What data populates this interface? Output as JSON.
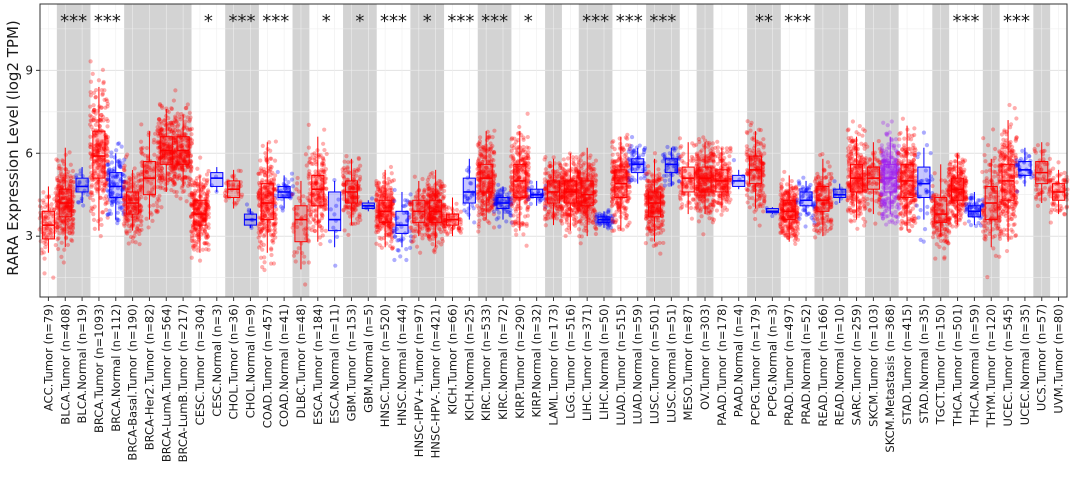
{
  "chart_data": {
    "type": "box",
    "title": "",
    "ylabel": "RARA Expression Level (log2 TPM)",
    "xlabel": "",
    "ylim": [
      0.8,
      11.4
    ],
    "yticks": [
      3,
      6,
      9
    ],
    "grid": true,
    "legend": "none",
    "colors": {
      "Tumor": "#ff0000",
      "Normal": "#0000ff",
      "Metastasis": "#a020f0"
    },
    "categories": [
      {
        "label": "ACC.Tumor (n=79)",
        "type": "Tumor",
        "group": 0,
        "median": 3.4,
        "q1": 2.9,
        "q3": 3.9,
        "wlo": 2.4,
        "whi": 4.8,
        "n": 79,
        "sig": ""
      },
      {
        "label": "BLCA.Tumor (n=408)",
        "type": "Tumor",
        "group": 1,
        "median": 4.2,
        "q1": 3.7,
        "q3": 4.7,
        "wlo": 2.6,
        "whi": 6.2,
        "n": 408,
        "sig": "***"
      },
      {
        "label": "BLCA.Normal (n=19)",
        "type": "Normal",
        "group": 1,
        "median": 4.8,
        "q1": 4.6,
        "q3": 5.1,
        "wlo": 4.2,
        "whi": 5.5,
        "n": 19,
        "sig": ""
      },
      {
        "label": "BRCA.Tumor (n=1093)",
        "type": "Tumor",
        "group": 2,
        "median": 5.9,
        "q1": 5.1,
        "q3": 6.8,
        "wlo": 3.2,
        "whi": 8.4,
        "n": 1093,
        "sig": "***"
      },
      {
        "label": "BRCA.Normal (n=112)",
        "type": "Normal",
        "group": 2,
        "median": 4.8,
        "q1": 4.4,
        "q3": 5.3,
        "wlo": 3.6,
        "whi": 6.0,
        "n": 112,
        "sig": ""
      },
      {
        "label": "BRCA-Basal.Tumor (n=190)",
        "type": "Tumor",
        "group": 3,
        "median": 4.2,
        "q1": 3.8,
        "q3": 4.6,
        "wlo": 3.2,
        "whi": 5.4,
        "n": 190,
        "sig": ""
      },
      {
        "label": "BRCA-Her2.Tumor (n=82)",
        "type": "Tumor",
        "group": 3,
        "median": 5.1,
        "q1": 4.5,
        "q3": 5.7,
        "wlo": 3.6,
        "whi": 6.8,
        "n": 82,
        "sig": ""
      },
      {
        "label": "BRCA-LumA.Tumor (n=564)",
        "type": "Tumor",
        "group": 3,
        "median": 6.1,
        "q1": 5.6,
        "q3": 6.6,
        "wlo": 4.6,
        "whi": 7.6,
        "n": 564,
        "sig": ""
      },
      {
        "label": "BRCA-LumB.Tumor (n=217)",
        "type": "Tumor",
        "group": 3,
        "median": 6.1,
        "q1": 5.6,
        "q3": 6.6,
        "wlo": 4.8,
        "whi": 7.4,
        "n": 217,
        "sig": ""
      },
      {
        "label": "CESC.Tumor (n=304)",
        "type": "Tumor",
        "group": 4,
        "median": 3.8,
        "q1": 3.4,
        "q3": 4.3,
        "wlo": 2.4,
        "whi": 5.2,
        "n": 304,
        "sig": "*"
      },
      {
        "label": "CESC.Normal (n=3)",
        "type": "Normal",
        "group": 4,
        "median": 5.1,
        "q1": 4.8,
        "q3": 5.3,
        "wlo": 4.6,
        "whi": 5.5,
        "n": 3,
        "sig": ""
      },
      {
        "label": "CHOL.Tumor (n=36)",
        "type": "Tumor",
        "group": 5,
        "median": 4.7,
        "q1": 4.4,
        "q3": 5.0,
        "wlo": 4.0,
        "whi": 5.4,
        "n": 36,
        "sig": "***"
      },
      {
        "label": "CHOL.Normal (n=9)",
        "type": "Normal",
        "group": 5,
        "median": 3.6,
        "q1": 3.4,
        "q3": 3.8,
        "wlo": 3.3,
        "whi": 4.0,
        "n": 9,
        "sig": ""
      },
      {
        "label": "COAD.Tumor (n=457)",
        "type": "Tumor",
        "group": 6,
        "median": 4.2,
        "q1": 3.6,
        "q3": 4.9,
        "wlo": 2.4,
        "whi": 6.4,
        "n": 457,
        "sig": "***"
      },
      {
        "label": "COAD.Normal (n=41)",
        "type": "Normal",
        "group": 6,
        "median": 4.6,
        "q1": 4.4,
        "q3": 4.8,
        "wlo": 4.0,
        "whi": 5.2,
        "n": 41,
        "sig": ""
      },
      {
        "label": "DLBC.Tumor (n=48)",
        "type": "Tumor",
        "group": 7,
        "median": 3.6,
        "q1": 2.8,
        "q3": 4.1,
        "wlo": 1.8,
        "whi": 5.0,
        "n": 48,
        "sig": ""
      },
      {
        "label": "ESCA.Tumor (n=184)",
        "type": "Tumor",
        "group": 8,
        "median": 4.7,
        "q1": 4.1,
        "q3": 5.2,
        "wlo": 2.8,
        "whi": 6.6,
        "n": 184,
        "sig": "*"
      },
      {
        "label": "ESCA.Normal (n=11)",
        "type": "Normal",
        "group": 8,
        "median": 3.6,
        "q1": 3.2,
        "q3": 4.6,
        "wlo": 2.6,
        "whi": 5.0,
        "n": 11,
        "sig": ""
      },
      {
        "label": "GBM.Tumor (n=153)",
        "type": "Tumor",
        "group": 9,
        "median": 4.6,
        "q1": 4.2,
        "q3": 5.0,
        "wlo": 3.4,
        "whi": 5.8,
        "n": 153,
        "sig": "*"
      },
      {
        "label": "GBM.Normal (n=5)",
        "type": "Normal",
        "group": 9,
        "median": 4.1,
        "q1": 4.0,
        "q3": 4.2,
        "wlo": 3.9,
        "whi": 4.3,
        "n": 5,
        "sig": ""
      },
      {
        "label": "HNSC.Tumor (n=520)",
        "type": "Tumor",
        "group": 10,
        "median": 3.9,
        "q1": 3.5,
        "q3": 4.3,
        "wlo": 2.6,
        "whi": 5.4,
        "n": 520,
        "sig": "***"
      },
      {
        "label": "HNSC.Normal (n=44)",
        "type": "Normal",
        "group": 10,
        "median": 3.4,
        "q1": 3.1,
        "q3": 3.9,
        "wlo": 2.6,
        "whi": 4.6,
        "n": 44,
        "sig": ""
      },
      {
        "label": "HNSC-HPV+.Tumor (n=97)",
        "type": "Tumor",
        "group": 11,
        "median": 3.9,
        "q1": 3.5,
        "q3": 4.3,
        "wlo": 3.0,
        "whi": 5.0,
        "n": 97,
        "sig": "*"
      },
      {
        "label": "HNSC-HPV-.Tumor (n=421)",
        "type": "Tumor",
        "group": 11,
        "median": 3.9,
        "q1": 3.5,
        "q3": 4.3,
        "wlo": 2.6,
        "whi": 5.4,
        "n": 421,
        "sig": ""
      },
      {
        "label": "KICH.Tumor (n=66)",
        "type": "Tumor",
        "group": 12,
        "median": 3.6,
        "q1": 3.4,
        "q3": 3.8,
        "wlo": 3.0,
        "whi": 4.4,
        "n": 66,
        "sig": "***"
      },
      {
        "label": "KICH.Normal (n=25)",
        "type": "Normal",
        "group": 12,
        "median": 4.6,
        "q1": 4.2,
        "q3": 5.1,
        "wlo": 3.6,
        "whi": 5.8,
        "n": 25,
        "sig": ""
      },
      {
        "label": "KIRC.Tumor (n=533)",
        "type": "Tumor",
        "group": 13,
        "median": 5.1,
        "q1": 4.6,
        "q3": 5.6,
        "wlo": 3.6,
        "whi": 6.8,
        "n": 533,
        "sig": "***"
      },
      {
        "label": "KIRC.Normal (n=72)",
        "type": "Normal",
        "group": 13,
        "median": 4.2,
        "q1": 4.0,
        "q3": 4.4,
        "wlo": 3.6,
        "whi": 4.8,
        "n": 72,
        "sig": ""
      },
      {
        "label": "KIRP.Tumor (n=290)",
        "type": "Tumor",
        "group": 14,
        "median": 5.0,
        "q1": 4.4,
        "q3": 5.6,
        "wlo": 3.2,
        "whi": 6.8,
        "n": 290,
        "sig": "*"
      },
      {
        "label": "KIRP.Normal (n=32)",
        "type": "Normal",
        "group": 14,
        "median": 4.5,
        "q1": 4.4,
        "q3": 4.7,
        "wlo": 4.1,
        "whi": 5.0,
        "n": 32,
        "sig": ""
      },
      {
        "label": "LAML.Tumor (n=173)",
        "type": "Tumor",
        "group": 15,
        "median": 4.6,
        "q1": 4.2,
        "q3": 5.0,
        "wlo": 3.4,
        "whi": 5.8,
        "n": 173,
        "sig": ""
      },
      {
        "label": "LGG.Tumor (n=516)",
        "type": "Tumor",
        "group": 16,
        "median": 4.6,
        "q1": 4.2,
        "q3": 5.0,
        "wlo": 3.2,
        "whi": 6.0,
        "n": 516,
        "sig": ""
      },
      {
        "label": "LIHC.Tumor (n=371)",
        "type": "Tumor",
        "group": 17,
        "median": 4.5,
        "q1": 4.1,
        "q3": 5.0,
        "wlo": 3.0,
        "whi": 6.2,
        "n": 371,
        "sig": "***"
      },
      {
        "label": "LIHC.Normal (n=50)",
        "type": "Normal",
        "group": 17,
        "median": 3.6,
        "q1": 3.5,
        "q3": 3.7,
        "wlo": 3.3,
        "whi": 3.9,
        "n": 50,
        "sig": ""
      },
      {
        "label": "LUAD.Tumor (n=515)",
        "type": "Tumor",
        "group": 18,
        "median": 4.9,
        "q1": 4.4,
        "q3": 5.4,
        "wlo": 3.2,
        "whi": 6.6,
        "n": 515,
        "sig": "***"
      },
      {
        "label": "LUAD.Normal (n=59)",
        "type": "Normal",
        "group": 18,
        "median": 5.6,
        "q1": 5.3,
        "q3": 5.8,
        "wlo": 4.9,
        "whi": 6.2,
        "n": 59,
        "sig": ""
      },
      {
        "label": "LUSC.Tumor (n=501)",
        "type": "Tumor",
        "group": 19,
        "median": 4.2,
        "q1": 3.7,
        "q3": 4.6,
        "wlo": 2.8,
        "whi": 5.8,
        "n": 501,
        "sig": "***"
      },
      {
        "label": "LUSC.Normal (n=51)",
        "type": "Normal",
        "group": 19,
        "median": 5.6,
        "q1": 5.3,
        "q3": 5.8,
        "wlo": 4.8,
        "whi": 6.2,
        "n": 51,
        "sig": ""
      },
      {
        "label": "MESO.Tumor (n=87)",
        "type": "Tumor",
        "group": 20,
        "median": 5.1,
        "q1": 4.6,
        "q3": 5.5,
        "wlo": 3.8,
        "whi": 6.4,
        "n": 87,
        "sig": ""
      },
      {
        "label": "OV.Tumor (n=303)",
        "type": "Tumor",
        "group": 21,
        "median": 5.1,
        "q1": 4.6,
        "q3": 5.5,
        "wlo": 3.8,
        "whi": 6.4,
        "n": 303,
        "sig": ""
      },
      {
        "label": "PAAD.Tumor (n=178)",
        "type": "Tumor",
        "group": 22,
        "median": 5.0,
        "q1": 4.6,
        "q3": 5.4,
        "wlo": 4.0,
        "whi": 6.2,
        "n": 178,
        "sig": ""
      },
      {
        "label": "PAAD.Normal (n=4)",
        "type": "Normal",
        "group": 22,
        "median": 5.0,
        "q1": 4.8,
        "q3": 5.2,
        "wlo": 4.7,
        "whi": 5.4,
        "n": 4,
        "sig": ""
      },
      {
        "label": "PCPG.Tumor (n=179)",
        "type": "Tumor",
        "group": 23,
        "median": 5.4,
        "q1": 4.9,
        "q3": 5.9,
        "wlo": 4.0,
        "whi": 6.8,
        "n": 179,
        "sig": "**"
      },
      {
        "label": "PCPG.Normal (n=3)",
        "type": "Normal",
        "group": 23,
        "median": 3.9,
        "q1": 3.85,
        "q3": 4.0,
        "wlo": 3.8,
        "whi": 4.05,
        "n": 3,
        "sig": ""
      },
      {
        "label": "PRAD.Tumor (n=497)",
        "type": "Tumor",
        "group": 24,
        "median": 3.9,
        "q1": 3.6,
        "q3": 4.3,
        "wlo": 2.8,
        "whi": 5.2,
        "n": 497,
        "sig": "***"
      },
      {
        "label": "PRAD.Normal (n=52)",
        "type": "Normal",
        "group": 24,
        "median": 4.3,
        "q1": 4.1,
        "q3": 4.6,
        "wlo": 3.8,
        "whi": 5.0,
        "n": 52,
        "sig": ""
      },
      {
        "label": "READ.Tumor (n=166)",
        "type": "Tumor",
        "group": 25,
        "median": 4.3,
        "q1": 3.9,
        "q3": 4.8,
        "wlo": 3.0,
        "whi": 5.8,
        "n": 166,
        "sig": ""
      },
      {
        "label": "READ.Normal (n=10)",
        "type": "Normal",
        "group": 25,
        "median": 4.5,
        "q1": 4.4,
        "q3": 4.7,
        "wlo": 4.2,
        "whi": 4.9,
        "n": 10,
        "sig": ""
      },
      {
        "label": "SARC.Tumor (n=259)",
        "type": "Tumor",
        "group": 26,
        "median": 5.1,
        "q1": 4.6,
        "q3": 5.6,
        "wlo": 3.6,
        "whi": 6.6,
        "n": 259,
        "sig": ""
      },
      {
        "label": "SKCM.Tumor (n=103)",
        "type": "Tumor",
        "group": 27,
        "median": 5.1,
        "q1": 4.7,
        "q3": 5.5,
        "wlo": 3.8,
        "whi": 6.4,
        "n": 103,
        "sig": ""
      },
      {
        "label": "SKCM.Metastasis (n=368)",
        "type": "Metastasis",
        "group": 27,
        "median": 5.1,
        "q1": 4.6,
        "q3": 5.6,
        "wlo": 3.8,
        "whi": 6.6,
        "n": 368,
        "sig": ""
      },
      {
        "label": "STAD.Tumor (n=415)",
        "type": "Tumor",
        "group": 28,
        "median": 5.0,
        "q1": 4.4,
        "q3": 5.6,
        "wlo": 3.2,
        "whi": 7.0,
        "n": 415,
        "sig": ""
      },
      {
        "label": "STAD.Normal (n=35)",
        "type": "Normal",
        "group": 28,
        "median": 4.9,
        "q1": 4.4,
        "q3": 5.5,
        "wlo": 3.6,
        "whi": 6.2,
        "n": 35,
        "sig": ""
      },
      {
        "label": "TGCT.Tumor (n=150)",
        "type": "Tumor",
        "group": 29,
        "median": 3.8,
        "q1": 3.5,
        "q3": 4.4,
        "wlo": 3.0,
        "whi": 5.6,
        "n": 150,
        "sig": ""
      },
      {
        "label": "THCA.Tumor (n=501)",
        "type": "Tumor",
        "group": 30,
        "median": 4.7,
        "q1": 4.3,
        "q3": 5.1,
        "wlo": 3.4,
        "whi": 6.0,
        "n": 501,
        "sig": "***"
      },
      {
        "label": "THCA.Normal (n=59)",
        "type": "Normal",
        "group": 30,
        "median": 3.9,
        "q1": 3.7,
        "q3": 4.1,
        "wlo": 3.4,
        "whi": 4.6,
        "n": 59,
        "sig": ""
      },
      {
        "label": "THYM.Tumor (n=120)",
        "type": "Tumor",
        "group": 31,
        "median": 4.2,
        "q1": 3.6,
        "q3": 4.8,
        "wlo": 2.6,
        "whi": 5.8,
        "n": 120,
        "sig": ""
      },
      {
        "label": "UCEC.Tumor (n=545)",
        "type": "Tumor",
        "group": 32,
        "median": 5.0,
        "q1": 4.3,
        "q3": 5.6,
        "wlo": 2.8,
        "whi": 7.2,
        "n": 545,
        "sig": "***"
      },
      {
        "label": "UCEC.Normal (n=35)",
        "type": "Normal",
        "group": 32,
        "median": 5.4,
        "q1": 5.2,
        "q3": 5.7,
        "wlo": 4.8,
        "whi": 6.2,
        "n": 35,
        "sig": ""
      },
      {
        "label": "UCS.Tumor (n=57)",
        "type": "Tumor",
        "group": 33,
        "median": 5.3,
        "q1": 4.9,
        "q3": 5.7,
        "wlo": 4.2,
        "whi": 6.4,
        "n": 57,
        "sig": ""
      },
      {
        "label": "UVM.Tumor (n=80)",
        "type": "Tumor",
        "group": 34,
        "median": 4.6,
        "q1": 4.3,
        "q3": 4.9,
        "wlo": 3.8,
        "whi": 5.4,
        "n": 80,
        "sig": ""
      }
    ]
  }
}
